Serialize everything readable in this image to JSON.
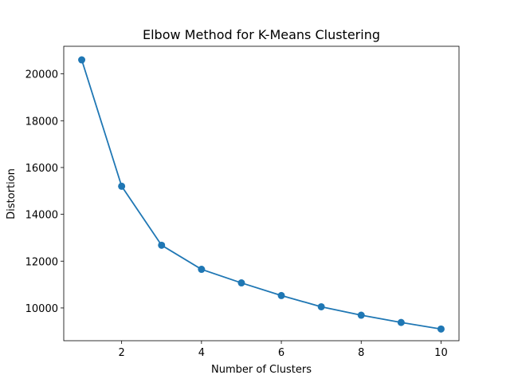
{
  "chart_data": {
    "type": "line",
    "title": "Elbow Method for K-Means Clustering",
    "xlabel": "Number of Clusters",
    "ylabel": "Distortion",
    "x": [
      1,
      2,
      3,
      4,
      5,
      6,
      7,
      8,
      9,
      10
    ],
    "series": [
      {
        "values": [
          20600,
          15200,
          12680,
          11650,
          11070,
          10530,
          10050,
          9690,
          9380,
          9100
        ],
        "color": "#1f77b4",
        "marker": "circle"
      }
    ],
    "xlim": [
      0.55,
      10.45
    ],
    "ylim": [
      8600,
      21180
    ],
    "xticks": [
      2,
      4,
      6,
      8,
      10
    ],
    "yticks": [
      10000,
      12000,
      14000,
      16000,
      18000,
      20000
    ],
    "grid": false,
    "legend": "none"
  }
}
